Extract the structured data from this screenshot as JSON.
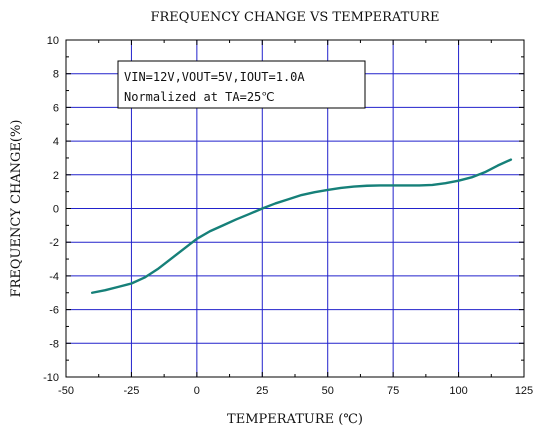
{
  "chart_data": {
    "type": "line",
    "title": "FREQUENCY CHANGE VS TEMPERATURE",
    "xlabel": "TEMPERATURE (℃)",
    "ylabel": "FREQUENCY CHANGE(%)",
    "xlim": [
      -50,
      125
    ],
    "ylim": [
      -10,
      10
    ],
    "x_ticks": [
      -50,
      -25,
      0,
      25,
      50,
      75,
      100,
      125
    ],
    "y_ticks": [
      -10,
      -8,
      -6,
      -4,
      -2,
      0,
      2,
      4,
      6,
      8,
      10
    ],
    "grid": true,
    "grid_color": "#2222cc",
    "line_color": "#168079",
    "annotation_lines": [
      "VIN=12V,VOUT=5V,IOUT=1.0A",
      "Normalized at TA=25℃"
    ],
    "series": [
      {
        "x": [
          -40,
          -35,
          -30,
          -25,
          -20,
          -15,
          -10,
          -5,
          0,
          5,
          10,
          15,
          20,
          25,
          30,
          35,
          40,
          45,
          50,
          55,
          60,
          65,
          70,
          75,
          80,
          85,
          90,
          95,
          100,
          105,
          110,
          115,
          120
        ],
        "values": [
          -5.0,
          -4.85,
          -4.65,
          -4.45,
          -4.1,
          -3.6,
          -3.0,
          -2.4,
          -1.8,
          -1.35,
          -1.0,
          -0.65,
          -0.33,
          0.0,
          0.3,
          0.55,
          0.8,
          0.97,
          1.1,
          1.22,
          1.3,
          1.35,
          1.37,
          1.37,
          1.37,
          1.37,
          1.4,
          1.5,
          1.65,
          1.85,
          2.15,
          2.55,
          2.9
        ]
      }
    ]
  }
}
